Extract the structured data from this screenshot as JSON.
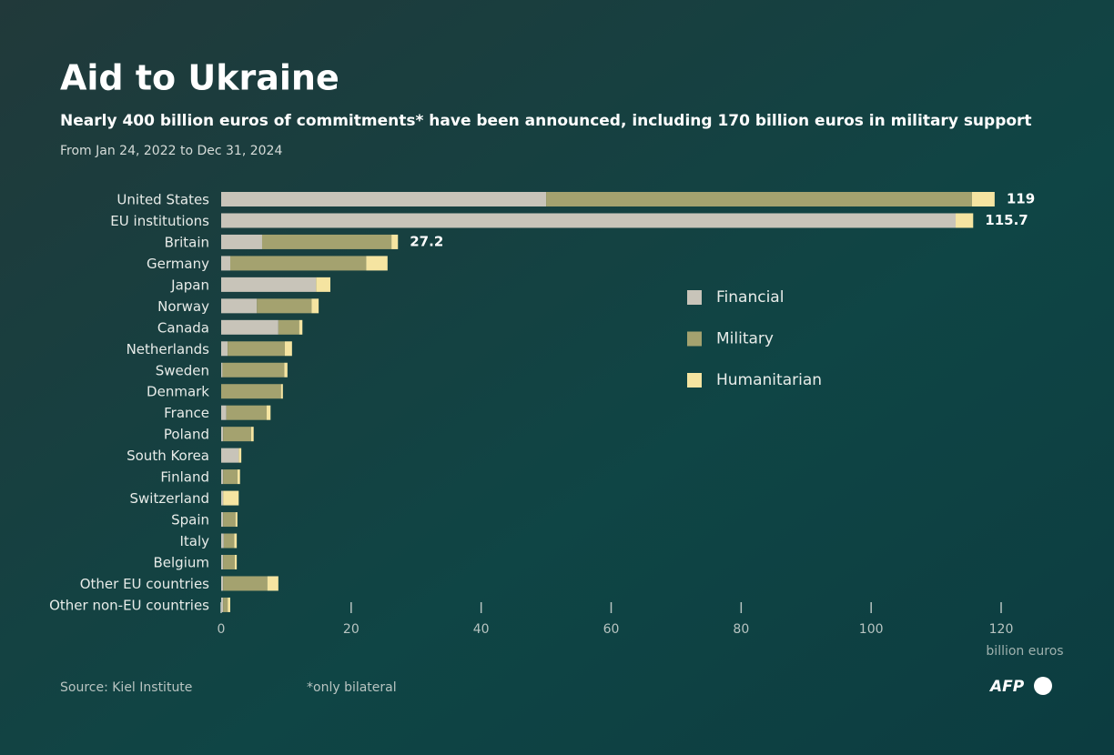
{
  "chart_data": {
    "type": "stacked-bar-horizontal",
    "title": "Aid to Ukraine",
    "subtitle": "Nearly 400 billion euros of commitments* have been announced, including 170 billion euros in military support",
    "period": "From Jan 24, 2022 to Dec 31, 2024",
    "categories": [
      "United States",
      "EU institutions",
      "Britain",
      "Germany",
      "Japan",
      "Norway",
      "Canada",
      "Netherlands",
      "Sweden",
      "Denmark",
      "France",
      "Poland",
      "South Korea",
      "Finland",
      "Switzerland",
      "Spain",
      "Italy",
      "Belgium",
      "Other EU countries",
      "Other non-EU countries"
    ],
    "series": [
      {
        "name": "Financial",
        "color": "#c8c4b9",
        "values": [
          50,
          113,
          6.3,
          1.4,
          14.6,
          5.5,
          8.8,
          1.0,
          0.2,
          0,
          0.8,
          0.3,
          2.7,
          0.3,
          0.3,
          0.3,
          0.4,
          0.3,
          0.3,
          0.3
        ]
      },
      {
        "name": "Military",
        "color": "#a4a26f",
        "values": [
          65.5,
          0,
          19.9,
          20.9,
          0,
          8.4,
          3.2,
          8.8,
          9.5,
          9.2,
          6.2,
          4.3,
          0,
          2.2,
          0,
          1.9,
          1.6,
          1.8,
          6.8,
          0.7
        ]
      },
      {
        "name": "Humanitarian",
        "color": "#f5e4a1",
        "values": [
          3.5,
          2.7,
          1.0,
          3.3,
          2.2,
          1.1,
          0.5,
          1.1,
          0.5,
          0.3,
          0.6,
          0.4,
          0.4,
          0.4,
          2.4,
          0.3,
          0.4,
          0.3,
          1.7,
          0.4
        ]
      }
    ],
    "totals": [
      119,
      115.7,
      27.2,
      null,
      null,
      null,
      null,
      null,
      null,
      null,
      null,
      null,
      null,
      null,
      null,
      null,
      null,
      null,
      null,
      null
    ],
    "xlim": [
      0,
      120
    ],
    "xticks": [
      0,
      20,
      40,
      60,
      80,
      100,
      120
    ],
    "xlabel": "billion euros",
    "source": "Source: Kiel Institute",
    "note": "*only bilateral",
    "logo": "AFP"
  }
}
